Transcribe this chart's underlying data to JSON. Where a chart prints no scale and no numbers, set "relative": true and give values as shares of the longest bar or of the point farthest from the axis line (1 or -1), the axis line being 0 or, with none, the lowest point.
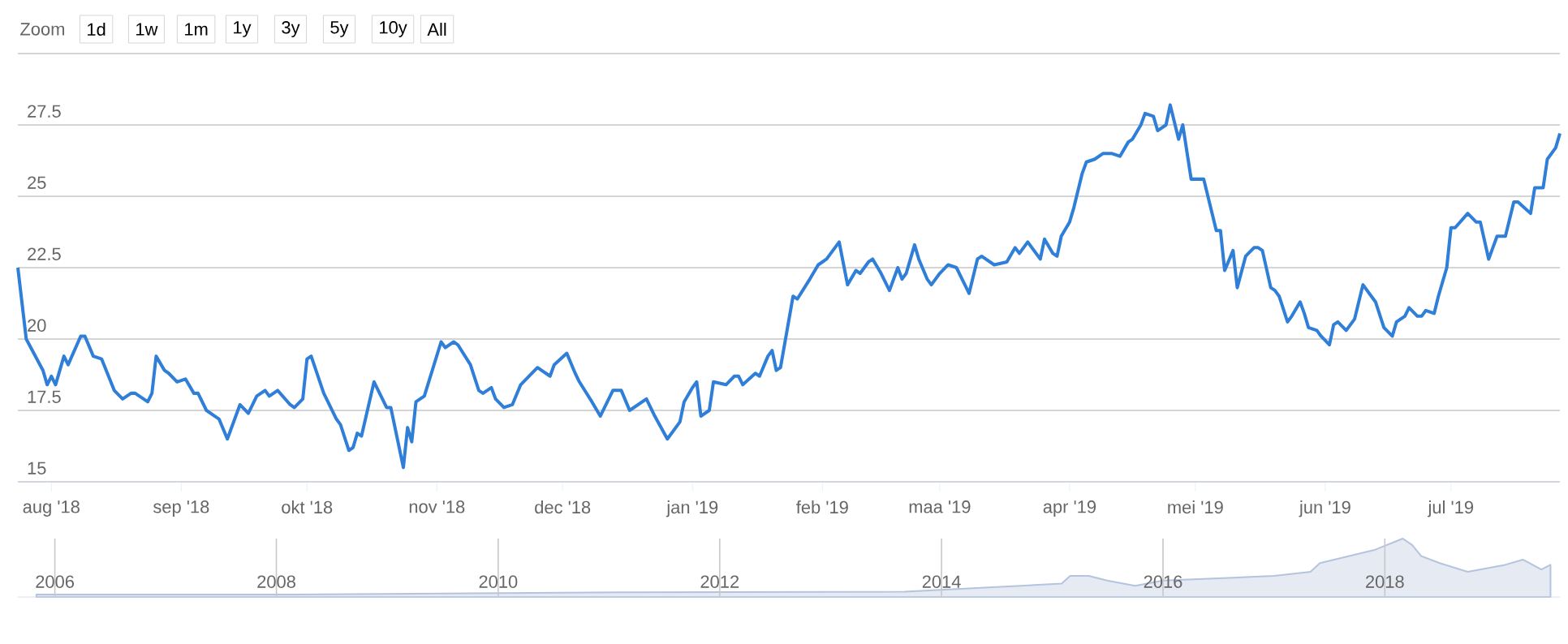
{
  "chart_data": [
    {
      "type": "line",
      "color": "#2f7ed8",
      "marker": "none",
      "line_style": "solid",
      "grid": "y",
      "xlim": [
        "2018-07-24",
        "2019-07-27"
      ],
      "ylim": [
        15,
        30
      ],
      "xticks": [
        {
          "value": "2018-08-01",
          "label": "aug '18"
        },
        {
          "value": "2018-09-01",
          "label": "sep '18"
        },
        {
          "value": "2018-10-01",
          "label": "okt '18"
        },
        {
          "value": "2018-11-01",
          "label": "nov '18"
        },
        {
          "value": "2018-12-01",
          "label": "dec '18"
        },
        {
          "value": "2019-01-01",
          "label": "jan '19"
        },
        {
          "value": "2019-02-01",
          "label": "feb '19"
        },
        {
          "value": "2019-03-01",
          "label": "maa '19"
        },
        {
          "value": "2019-04-01",
          "label": "apr '19"
        },
        {
          "value": "2019-05-01",
          "label": "mei '19"
        },
        {
          "value": "2019-06-01",
          "label": "jun '19"
        },
        {
          "value": "2019-07-01",
          "label": "jul '19"
        }
      ],
      "yticks": [
        15,
        17.5,
        20,
        22.5,
        25,
        27.5,
        {
          "value": 30,
          "label": null
        }
      ],
      "annotations": [
        "Zoom",
        "1d",
        "1w",
        "1m",
        "1y",
        "3y",
        "5y",
        "10y",
        "All"
      ],
      "x": [
        "2018-07-24",
        "2018-07-26",
        "2018-07-30",
        "2018-07-31",
        "2018-08-01",
        "2018-08-02",
        "2018-08-04",
        "2018-08-05",
        "2018-08-08",
        "2018-08-09",
        "2018-08-11",
        "2018-08-13",
        "2018-08-16",
        "2018-08-18",
        "2018-08-20",
        "2018-08-21",
        "2018-08-24",
        "2018-08-25",
        "2018-08-26",
        "2018-08-28",
        "2018-08-29",
        "2018-08-31",
        "2018-09-02",
        "2018-09-04",
        "2018-09-05",
        "2018-09-07",
        "2018-09-09",
        "2018-09-10",
        "2018-09-12",
        "2018-09-14",
        "2018-09-15",
        "2018-09-17",
        "2018-09-19",
        "2018-09-21",
        "2018-09-22",
        "2018-09-24",
        "2018-09-27",
        "2018-09-28",
        "2018-09-30",
        "2018-10-01",
        "2018-10-02",
        "2018-10-05",
        "2018-10-06",
        "2018-10-08",
        "2018-10-09",
        "2018-10-11",
        "2018-10-12",
        "2018-10-13",
        "2018-10-14",
        "2018-10-17",
        "2018-10-20",
        "2018-10-21",
        "2018-10-24",
        "2018-10-25",
        "2018-10-26",
        "2018-10-27",
        "2018-10-29",
        "2018-11-02",
        "2018-11-03",
        "2018-11-05",
        "2018-11-06",
        "2018-11-09",
        "2018-11-11",
        "2018-11-12",
        "2018-11-14",
        "2018-11-15",
        "2018-11-17",
        "2018-11-19",
        "2018-11-21",
        "2018-11-25",
        "2018-11-28",
        "2018-11-29",
        "2018-12-02",
        "2018-12-04",
        "2018-12-05",
        "2018-12-08",
        "2018-12-10",
        "2018-12-13",
        "2018-12-15",
        "2018-12-17",
        "2018-12-21",
        "2018-12-23",
        "2018-12-26",
        "2018-12-29",
        "2018-12-30",
        "2019-01-01",
        "2019-01-02",
        "2019-01-03",
        "2019-01-05",
        "2019-01-06",
        "2019-01-09",
        "2019-01-11",
        "2019-01-12",
        "2019-01-13",
        "2019-01-16",
        "2019-01-17",
        "2019-01-19",
        "2019-01-20",
        "2019-01-21",
        "2019-01-22",
        "2019-01-25",
        "2019-01-26",
        "2019-01-29",
        "2019-01-31",
        "2019-02-02",
        "2019-02-05",
        "2019-02-07",
        "2019-02-09",
        "2019-02-10",
        "2019-02-12",
        "2019-02-13",
        "2019-02-15",
        "2019-02-17",
        "2019-02-19",
        "2019-02-20",
        "2019-02-21",
        "2019-02-23",
        "2019-02-24",
        "2019-02-26",
        "2019-02-27",
        "2019-03-01",
        "2019-03-03",
        "2019-03-05",
        "2019-03-06",
        "2019-03-08",
        "2019-03-10",
        "2019-03-11",
        "2019-03-14",
        "2019-03-17",
        "2019-03-19",
        "2019-03-20",
        "2019-03-22",
        "2019-03-23",
        "2019-03-25",
        "2019-03-26",
        "2019-03-28",
        "2019-03-29",
        "2019-03-30",
        "2019-04-01",
        "2019-04-02",
        "2019-04-04",
        "2019-04-05",
        "2019-04-07",
        "2019-04-09",
        "2019-04-11",
        "2019-04-13",
        "2019-04-15",
        "2019-04-16",
        "2019-04-18",
        "2019-04-19",
        "2019-04-21",
        "2019-04-22",
        "2019-04-24",
        "2019-04-25",
        "2019-04-27",
        "2019-04-28",
        "2019-04-30",
        "2019-05-01",
        "2019-05-03",
        "2019-05-06",
        "2019-05-07",
        "2019-05-08",
        "2019-05-10",
        "2019-05-11",
        "2019-05-13",
        "2019-05-15",
        "2019-05-16",
        "2019-05-17",
        "2019-05-19",
        "2019-05-20",
        "2019-05-21",
        "2019-05-23",
        "2019-05-24",
        "2019-05-26",
        "2019-05-27",
        "2019-05-28",
        "2019-05-30",
        "2019-05-31",
        "2019-06-02",
        "2019-06-03",
        "2019-06-04",
        "2019-06-06",
        "2019-06-08",
        "2019-06-09",
        "2019-06-10",
        "2019-06-12",
        "2019-06-13",
        "2019-06-15",
        "2019-06-17",
        "2019-06-18",
        "2019-06-20",
        "2019-06-21",
        "2019-06-23",
        "2019-06-24",
        "2019-06-25",
        "2019-06-27",
        "2019-06-28",
        "2019-06-30",
        "2019-07-01",
        "2019-07-02",
        "2019-07-05",
        "2019-07-07",
        "2019-07-08",
        "2019-07-10",
        "2019-07-11",
        "2019-07-12",
        "2019-07-14",
        "2019-07-16",
        "2019-07-17",
        "2019-07-20",
        "2019-07-21",
        "2019-07-23",
        "2019-07-24",
        "2019-07-26",
        "2019-07-27"
      ],
      "values": [
        22.5,
        20.0,
        18.9,
        18.4,
        18.7,
        18.4,
        19.4,
        19.1,
        20.1,
        20.1,
        19.4,
        19.3,
        18.2,
        17.9,
        18.1,
        18.1,
        17.8,
        18.1,
        19.4,
        18.9,
        18.8,
        18.5,
        18.6,
        18.1,
        18.1,
        17.5,
        17.3,
        17.2,
        16.5,
        17.3,
        17.7,
        17.4,
        18.0,
        18.2,
        18.0,
        18.2,
        17.7,
        17.6,
        17.9,
        19.3,
        19.4,
        18.1,
        17.8,
        17.2,
        17.0,
        16.1,
        16.2,
        16.7,
        16.6,
        18.5,
        17.6,
        17.6,
        15.5,
        16.9,
        16.4,
        17.8,
        18.0,
        19.9,
        19.7,
        19.9,
        19.8,
        19.1,
        18.2,
        18.1,
        18.3,
        17.9,
        17.6,
        17.7,
        18.4,
        19.0,
        18.7,
        19.1,
        19.5,
        18.8,
        18.5,
        17.8,
        17.3,
        18.2,
        18.2,
        17.5,
        17.9,
        17.3,
        16.5,
        17.1,
        17.8,
        18.3,
        18.5,
        17.3,
        17.5,
        18.5,
        18.4,
        18.7,
        18.7,
        18.4,
        18.8,
        18.7,
        19.4,
        19.6,
        18.9,
        19.0,
        21.5,
        21.4,
        22.1,
        22.6,
        22.8,
        23.4,
        21.9,
        22.4,
        22.3,
        22.7,
        22.8,
        22.3,
        21.7,
        22.5,
        22.1,
        22.3,
        23.3,
        22.8,
        22.1,
        21.9,
        22.3,
        22.6,
        22.5,
        22.2,
        21.6,
        22.8,
        22.9,
        22.6,
        22.7,
        23.2,
        23.0,
        23.4,
        23.2,
        22.8,
        23.5,
        23.0,
        22.9,
        23.6,
        24.1,
        24.6,
        25.8,
        26.2,
        26.3,
        26.5,
        26.5,
        26.4,
        26.9,
        27.0,
        27.5,
        27.9,
        27.8,
        27.3,
        27.5,
        28.2,
        27.0,
        27.5,
        25.6,
        25.6,
        25.6,
        23.8,
        23.8,
        22.4,
        23.1,
        21.8,
        22.9,
        23.2,
        23.2,
        23.1,
        21.8,
        21.7,
        21.5,
        20.6,
        20.8,
        21.3,
        20.9,
        20.4,
        20.3,
        20.1,
        19.8,
        20.5,
        20.6,
        20.3,
        20.7,
        21.3,
        21.9,
        21.5,
        21.3,
        20.4,
        20.1,
        20.6,
        20.8,
        21.1,
        20.8,
        20.8,
        21.0,
        20.9,
        21.5,
        22.5,
        23.9,
        23.9,
        24.4,
        24.1,
        24.1,
        22.8,
        23.2,
        23.6,
        23.6,
        24.8,
        24.8,
        24.4,
        25.3,
        25.3,
        26.3,
        26.7,
        27.2
      ]
    },
    {
      "type": "area",
      "relative": true,
      "color": "#b5c4de",
      "grid": "x",
      "xlim": [
        "2005-09",
        "2019-08"
      ],
      "xticks": [
        "2006",
        "2008",
        "2010",
        "2012",
        "2014",
        "2016",
        "2018"
      ],
      "x": [
        "2005-11",
        "2008-03",
        "2011-03",
        "2013-09",
        "2014-07",
        "2015-02",
        "2015-03",
        "2015-05",
        "2015-07",
        "2015-10",
        "2016-01",
        "2017-01",
        "2017-05",
        "2017-06",
        "2017-12",
        "2018-03",
        "2018-04",
        "2018-05",
        "2018-07",
        "2018-10",
        "2019-02",
        "2019-04",
        "2019-06",
        "2019-07"
      ],
      "values": [
        0.04,
        0.04,
        0.08,
        0.09,
        0.17,
        0.23,
        0.36,
        0.36,
        0.28,
        0.19,
        0.28,
        0.36,
        0.43,
        0.58,
        0.81,
        1.0,
        0.89,
        0.7,
        0.58,
        0.43,
        0.55,
        0.64,
        0.47,
        0.55
      ]
    }
  ]
}
